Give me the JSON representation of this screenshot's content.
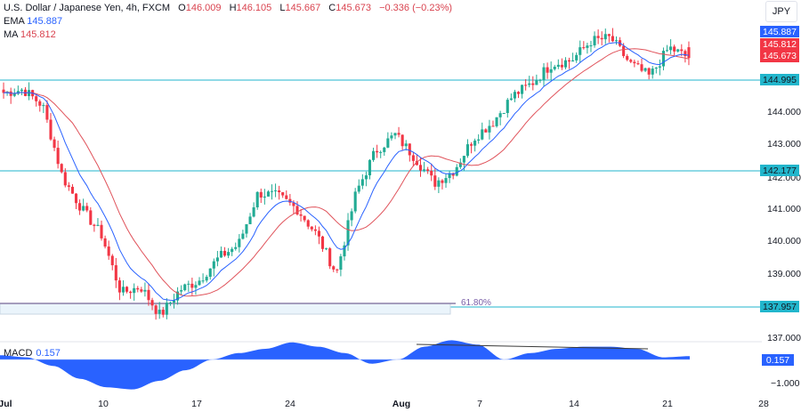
{
  "header": {
    "symbol_title": "U.S. Dollar / Japanese Yen, 4h, FXCM",
    "open_label": "O",
    "open": "146.009",
    "high_label": "H",
    "high": "146.105",
    "low_label": "L",
    "low": "145.667",
    "close_label": "C",
    "close": "145.673",
    "change": "−0.336 (−0.23%)",
    "ema_label": "EMA",
    "ema_value": "145.887",
    "ma_label": "MA",
    "ma_value": "145.812",
    "currency": "JPY"
  },
  "price_axis": {
    "ticks": [
      "144.000",
      "143.000",
      "142.000",
      "141.000",
      "140.000",
      "139.000",
      "137.000"
    ],
    "tags": {
      "ema": "145.887",
      "ma": "145.812",
      "close": "145.673",
      "level1": "144.995",
      "level2": "142.177",
      "level3": "137.957"
    }
  },
  "macd": {
    "label": "MACD",
    "value": "0.157",
    "tag": "0.157",
    "axis_tick": "−1.000"
  },
  "fib_label": "61.80%",
  "time_axis": [
    "Jul",
    "10",
    "17",
    "24",
    "Aug",
    "7",
    "14",
    "21",
    "28"
  ],
  "colors": {
    "up": "#22ab94",
    "down": "#f23645",
    "ema": "#2962ff",
    "ma": "#e0535b",
    "level_line": "#22b6cc",
    "macd_fill": "#2962ff",
    "tag_blue": "#2962ff",
    "tag_red": "#f23645",
    "tag_teal": "#22b6cc"
  },
  "chart_data": {
    "type": "candlestick",
    "title": "U.S. Dollar / Japanese Yen, 4h, FXCM",
    "x_ticks": [
      "Jul",
      "10",
      "17",
      "24",
      "Aug",
      "7",
      "14",
      "21",
      "28"
    ],
    "y_ticks": [
      144.0,
      143.0,
      142.0,
      141.0,
      140.0,
      139.0,
      137.0
    ],
    "ylim": [
      136.9,
      146.6
    ],
    "horizontal_levels": [
      144.995,
      142.177,
      137.957
    ],
    "fib_level": {
      "label": "61.80%",
      "price": 138.1
    },
    "last": {
      "open": 146.009,
      "high": 146.105,
      "low": 145.667,
      "close": 145.673,
      "change": -0.336,
      "change_pct": -0.23
    },
    "indicators": {
      "EMA": 145.887,
      "MA": 145.812,
      "MACD": 0.157
    },
    "path_points": [
      {
        "x": "Jul 3",
        "price": 144.6
      },
      {
        "x": "Jul 6",
        "price": 144.7
      },
      {
        "x": "Jul 7",
        "price": 144.2
      },
      {
        "x": "Jul 8",
        "price": 142.0
      },
      {
        "x": "Jul 11",
        "price": 141.0
      },
      {
        "x": "Jul 12",
        "price": 140.2
      },
      {
        "x": "Jul 13",
        "price": 138.4
      },
      {
        "x": "Jul 14",
        "price": 138.6
      },
      {
        "x": "Jul 17",
        "price": 137.7
      },
      {
        "x": "Jul 18",
        "price": 138.5
      },
      {
        "x": "Jul 19",
        "price": 138.8
      },
      {
        "x": "Jul 20",
        "price": 139.5
      },
      {
        "x": "Jul 21",
        "price": 139.9
      },
      {
        "x": "Jul 24",
        "price": 141.5
      },
      {
        "x": "Jul 25",
        "price": 141.4
      },
      {
        "x": "Jul 26",
        "price": 141.0
      },
      {
        "x": "Jul 27",
        "price": 140.2
      },
      {
        "x": "Jul 28",
        "price": 139.0
      },
      {
        "x": "Jul 31",
        "price": 141.5
      },
      {
        "x": "Aug 1",
        "price": 142.8
      },
      {
        "x": "Aug 2",
        "price": 143.3
      },
      {
        "x": "Aug 3",
        "price": 142.6
      },
      {
        "x": "Aug 4",
        "price": 141.8
      },
      {
        "x": "Aug 7",
        "price": 142.2
      },
      {
        "x": "Aug 8",
        "price": 143.2
      },
      {
        "x": "Aug 9",
        "price": 143.7
      },
      {
        "x": "Aug 10",
        "price": 144.5
      },
      {
        "x": "Aug 11",
        "price": 144.9
      },
      {
        "x": "Aug 14",
        "price": 145.5
      },
      {
        "x": "Aug 15",
        "price": 145.6
      },
      {
        "x": "Aug 16",
        "price": 146.2
      },
      {
        "x": "Aug 17",
        "price": 146.3
      },
      {
        "x": "Aug 18",
        "price": 145.5
      },
      {
        "x": "Aug 21",
        "price": 145.1
      },
      {
        "x": "Aug 22",
        "price": 146.0
      },
      {
        "x": "Aug 23",
        "price": 145.673
      }
    ],
    "macd_series": {
      "name": "MACD",
      "approx_values": [
        0.2,
        0.1,
        -0.3,
        -0.9,
        -1.3,
        -1.4,
        -1.0,
        -0.5,
        0.0,
        0.3,
        0.5,
        0.8,
        0.6,
        0.3,
        -0.2,
        0.0,
        0.6,
        0.9,
        0.7,
        0.0,
        0.3,
        0.5,
        0.6,
        0.6,
        0.5,
        0.1,
        0.157
      ]
    },
    "macd_trendline": {
      "from": "Aug 2",
      "to": "Aug 18",
      "note": "descending line over MACD peaks"
    }
  }
}
